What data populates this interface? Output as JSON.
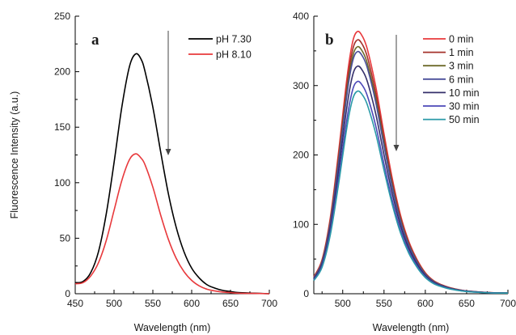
{
  "chart_data": [
    {
      "panel_label": "a",
      "type": "line",
      "xlabel": "Wavelength (nm)",
      "ylabel": "Fluorescence Intensity (a.u.)",
      "xlim": [
        450,
        700
      ],
      "ylim": [
        0,
        250
      ],
      "xticks": [
        450,
        500,
        550,
        600,
        650,
        700
      ],
      "yticks": [
        0,
        50,
        100,
        150,
        200,
        250
      ],
      "legend_position": "top-right",
      "annotation": "downward arrow indicating decreasing intensity",
      "x": [
        450,
        460,
        470,
        480,
        490,
        500,
        510,
        520,
        528,
        535,
        540,
        550,
        560,
        570,
        580,
        590,
        600,
        610,
        620,
        630,
        640,
        650,
        660,
        680,
        700
      ],
      "series": [
        {
          "name": "pH 7.30",
          "color": "#000000",
          "values": [
            10,
            11,
            19,
            38,
            72,
            118,
            168,
            205,
            216,
            211,
            200,
            168,
            128,
            90,
            60,
            38,
            23,
            14,
            8,
            5,
            3,
            2,
            1,
            0.5,
            0
          ]
        },
        {
          "name": "pH 8.10",
          "color": "#e8393c",
          "values": [
            9,
            10,
            16,
            28,
            48,
            75,
            102,
            121,
            126,
            122,
            116,
            96,
            71,
            49,
            32,
            20,
            12,
            7,
            4,
            2.5,
            1.5,
            1,
            0.5,
            0.3,
            0
          ]
        }
      ]
    },
    {
      "panel_label": "b",
      "type": "line",
      "xlabel": "Wavelength (nm)",
      "ylabel": "",
      "xlim": [
        465,
        700
      ],
      "ylim": [
        0,
        400
      ],
      "xticks": [
        500,
        550,
        600,
        650,
        700
      ],
      "yticks": [
        0,
        100,
        200,
        300,
        400
      ],
      "legend_position": "top-right",
      "annotation": "downward arrow indicating decreasing intensity",
      "x": [
        465,
        475,
        485,
        495,
        505,
        512,
        518,
        524,
        530,
        540,
        550,
        560,
        570,
        580,
        590,
        600,
        610,
        620,
        630,
        645,
        660,
        680,
        700
      ],
      "profile": [
        0.065,
        0.13,
        0.29,
        0.54,
        0.82,
        0.96,
        1.0,
        0.98,
        0.93,
        0.79,
        0.61,
        0.44,
        0.3,
        0.2,
        0.13,
        0.08,
        0.05,
        0.034,
        0.023,
        0.013,
        0.008,
        0.004,
        0.003
      ],
      "series": [
        {
          "name": "0 min",
          "color": "#e8393c",
          "peak": 378
        },
        {
          "name": "1 min",
          "color": "#a4322b",
          "peak": 366
        },
        {
          "name": "3 min",
          "color": "#6e6a2a",
          "peak": 356
        },
        {
          "name": "6 min",
          "color": "#4a4f9a",
          "peak": 349
        },
        {
          "name": "10 min",
          "color": "#35306b",
          "peak": 328
        },
        {
          "name": "30 min",
          "color": "#4b48b8",
          "peak": 306
        },
        {
          "name": "50 min",
          "color": "#2a9aa8",
          "peak": 292
        }
      ]
    }
  ]
}
